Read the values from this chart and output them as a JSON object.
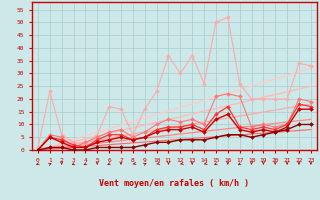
{
  "xlabel": "Vent moyen/en rafales ( km/h )",
  "xlim": [
    -0.5,
    23.5
  ],
  "ylim": [
    0,
    58
  ],
  "yticks": [
    0,
    5,
    10,
    15,
    20,
    25,
    30,
    35,
    40,
    45,
    50,
    55
  ],
  "xticks": [
    0,
    1,
    2,
    3,
    4,
    5,
    6,
    7,
    8,
    9,
    10,
    11,
    12,
    13,
    14,
    15,
    16,
    17,
    18,
    19,
    20,
    21,
    22,
    23
  ],
  "bg_color": "#cce8e8",
  "series": [
    {
      "x": [
        0,
        1,
        2,
        3,
        4,
        5,
        6,
        7,
        8,
        9,
        10,
        11,
        12,
        13,
        14,
        15,
        16,
        17,
        18,
        19,
        20,
        21,
        22,
        23
      ],
      "y": [
        1,
        23,
        6,
        3,
        2,
        6,
        17,
        16,
        6,
        16,
        23,
        37,
        30,
        37,
        26,
        50,
        52,
        26,
        20,
        20,
        20,
        20,
        34,
        33
      ],
      "color": "#ffaaaa",
      "lw": 0.8,
      "marker": "D",
      "ms": 2.0
    },
    {
      "x": [
        0,
        1,
        2,
        3,
        4,
        5,
        6,
        7,
        8,
        9,
        10,
        11,
        12,
        13,
        14,
        15,
        16,
        17,
        18,
        19,
        20,
        21,
        22,
        23
      ],
      "y": [
        0,
        6,
        5,
        1,
        3,
        5,
        7,
        8,
        5,
        7,
        10,
        12,
        11,
        12,
        10,
        21,
        22,
        21,
        9,
        10,
        9,
        10,
        20,
        19
      ],
      "color": "#ff7777",
      "lw": 0.8,
      "marker": "D",
      "ms": 2.0
    },
    {
      "x": [
        0,
        1,
        2,
        3,
        4,
        5,
        6,
        7,
        8,
        9,
        10,
        11,
        12,
        13,
        14,
        15,
        16,
        17,
        18,
        19,
        20,
        21,
        22,
        23
      ],
      "y": [
        0,
        5,
        4,
        2,
        1,
        4,
        6,
        6,
        4,
        5,
        8,
        9,
        9,
        10,
        8,
        14,
        17,
        9,
        8,
        9,
        8,
        10,
        18,
        17
      ],
      "color": "#ff3333",
      "lw": 0.9,
      "marker": "D",
      "ms": 2.0
    },
    {
      "x": [
        0,
        1,
        2,
        3,
        4,
        5,
        6,
        7,
        8,
        9,
        10,
        11,
        12,
        13,
        14,
        15,
        16,
        17,
        18,
        19,
        20,
        21,
        22,
        23
      ],
      "y": [
        0,
        5,
        3,
        1,
        1,
        3,
        4,
        5,
        4,
        5,
        7,
        8,
        8,
        9,
        7,
        12,
        14,
        8,
        7,
        8,
        7,
        9,
        16,
        16
      ],
      "color": "#cc0000",
      "lw": 1.0,
      "marker": "D",
      "ms": 2.0
    },
    {
      "x": [
        0,
        1,
        2,
        3,
        4,
        5,
        6,
        7,
        8,
        9,
        10,
        11,
        12,
        13,
        14,
        15,
        16,
        17,
        18,
        19,
        20,
        21,
        22,
        23
      ],
      "y": [
        0,
        1,
        1,
        0,
        0,
        1,
        1,
        1,
        1,
        2,
        3,
        3,
        4,
        4,
        4,
        5,
        6,
        6,
        5,
        6,
        7,
        8,
        10,
        10
      ],
      "color": "#880000",
      "lw": 1.0,
      "marker": "D",
      "ms": 2.0
    },
    {
      "x": [
        0,
        23
      ],
      "y": [
        0,
        32
      ],
      "color": "#ffcccc",
      "lw": 1.0,
      "marker": null,
      "ms": 0
    },
    {
      "x": [
        0,
        23
      ],
      "y": [
        0,
        25
      ],
      "color": "#ffbbbb",
      "lw": 1.0,
      "marker": null,
      "ms": 0
    },
    {
      "x": [
        0,
        23
      ],
      "y": [
        0,
        18
      ],
      "color": "#ffaaaa",
      "lw": 0.9,
      "marker": null,
      "ms": 0
    },
    {
      "x": [
        0,
        23
      ],
      "y": [
        0,
        12
      ],
      "color": "#ff8888",
      "lw": 0.9,
      "marker": null,
      "ms": 0
    },
    {
      "x": [
        0,
        23
      ],
      "y": [
        0,
        8
      ],
      "color": "#ff6666",
      "lw": 0.8,
      "marker": null,
      "ms": 0
    }
  ],
  "arrow_angles_deg": [
    210,
    30,
    180,
    210,
    210,
    180,
    210,
    180,
    225,
    30,
    225,
    180,
    225,
    180,
    225,
    210,
    180,
    210,
    180,
    180,
    180,
    180,
    180,
    180
  ],
  "grid_color": "#aacccc",
  "axis_color": "#cc0000",
  "tick_color": "#cc0000",
  "label_color": "#cc0000"
}
